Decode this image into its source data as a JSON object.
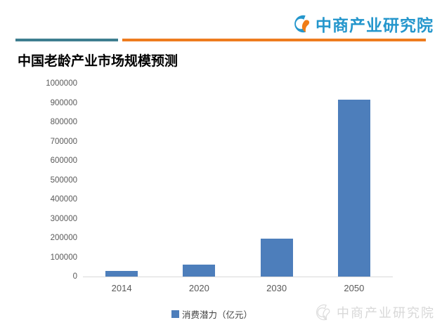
{
  "header": {
    "logo": {
      "text": "中商产业研究院",
      "text_color": "#2496cc",
      "icon_blue": "#2496cc",
      "icon_orange": "#f07d17"
    },
    "divider": {
      "teal_color": "#3e7e90",
      "orange_color": "#ee7c1e"
    }
  },
  "title": {
    "text": "中国老龄产业市场规模预测"
  },
  "chart_data": {
    "type": "bar",
    "title": "中国老龄产业市场规模预测",
    "categories": [
      "2014",
      "2020",
      "2030",
      "2050"
    ],
    "values": [
      30000,
      62000,
      195000,
      915000
    ],
    "series_name": "消费潜力（亿元）",
    "legend_label": "消费潜力（亿元）",
    "unit": "亿元",
    "ylim": [
      0,
      1000000
    ],
    "ytick_step": 100000,
    "yticks": [
      "0",
      "100000",
      "200000",
      "300000",
      "400000",
      "500000",
      "600000",
      "700000",
      "800000",
      "900000",
      "1000000"
    ],
    "bar_color": "#4d7ebb",
    "axis_color": "#d9d9d9",
    "tick_label_color": "#595959",
    "grid": false,
    "legend_position": "bottom"
  },
  "footer": {
    "watermark_text": "中商产业研究院",
    "watermark_color": "#d8d8d8"
  }
}
